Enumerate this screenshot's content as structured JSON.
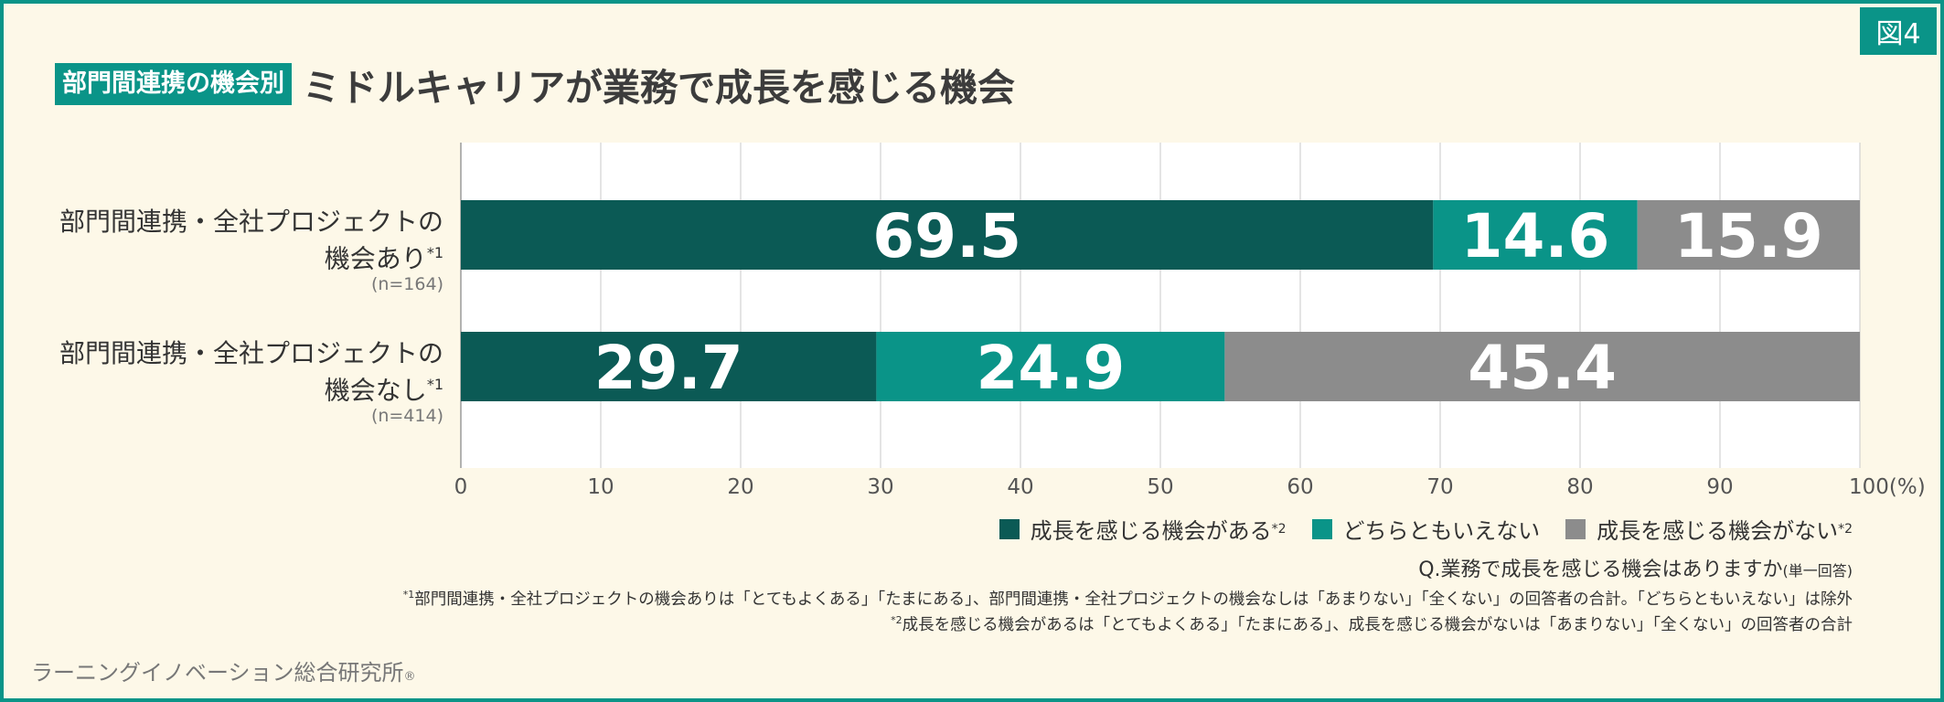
{
  "figure_label": "図4",
  "title": {
    "tag": "部門間連携の機会別",
    "main": "ミドルキャリアが業務で成長を感じる機会"
  },
  "rows": [
    {
      "label_line1": "部門間連携・全社プロジェクトの",
      "label_line2": "機会あり",
      "label_mark": "*1",
      "n": "(n=164)"
    },
    {
      "label_line1": "部門間連携・全社プロジェクトの",
      "label_line2": "機会なし",
      "label_mark": "*1",
      "n": "(n=414)"
    }
  ],
  "legend": [
    {
      "text": "成長を感じる機会がある",
      "mark": "*2",
      "color": "#0b5a55"
    },
    {
      "text": "どちらともいえない",
      "mark": "",
      "color": "#0a9488"
    },
    {
      "text": "成長を感じる機会がない",
      "mark": "*2",
      "color": "#8c8c8c"
    }
  ],
  "question": "Q.業務で成長を感じる機会はありますか",
  "question_note": "(単一回答)",
  "notes": [
    {
      "mark": "*1",
      "text": "部門間連携・全社プロジェクトの機会ありは「とてもよくある」「たまにある」、部門間連携・全社プロジェクトの機会なしは「あまりない」「全くない」の回答者の合計。「どちらともいえない」は除外"
    },
    {
      "mark": "*2",
      "text": "成長を感じる機会があるは「とてもよくある」「たまにある」、成長を感じる機会がないは「あまりない」「全くない」の回答者の合計"
    }
  ],
  "footer": {
    "brand": "ラーニングイノベーション総合研究所",
    "mark": "®"
  },
  "chart_data": {
    "type": "bar",
    "orientation": "horizontal",
    "stacked": true,
    "categories": [
      "部門間連携・全社プロジェクトの機会あり",
      "部門間連携・全社プロジェクトの機会なし"
    ],
    "series": [
      {
        "name": "成長を感じる機会がある",
        "values": [
          69.5,
          29.7
        ],
        "color": "#0b5a55"
      },
      {
        "name": "どちらともいえない",
        "values": [
          14.6,
          24.9
        ],
        "color": "#0a9488"
      },
      {
        "name": "成長を感じる機会がない",
        "values": [
          15.9,
          45.4
        ],
        "color": "#8c8c8c"
      }
    ],
    "x_ticks": [
      "0",
      "10",
      "20",
      "30",
      "40",
      "50",
      "60",
      "70",
      "80",
      "90",
      "100(%)"
    ],
    "xlim": [
      0,
      100
    ],
    "grid": true,
    "legend_position": "bottom-right"
  }
}
